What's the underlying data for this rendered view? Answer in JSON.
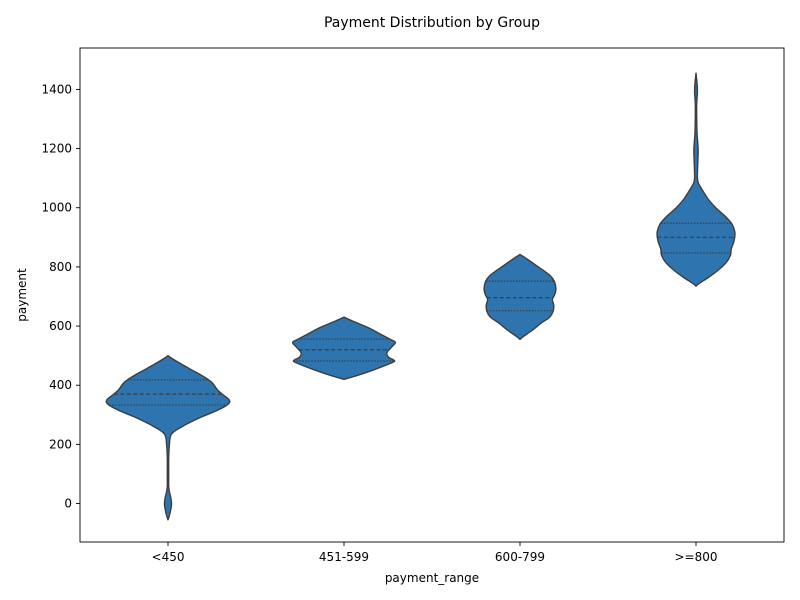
{
  "chart_data": {
    "type": "violin",
    "title": "Payment Distribution by Group",
    "xlabel": "payment_range",
    "ylabel": "payment",
    "categories": [
      "<450",
      "451-599",
      "600-799",
      ">=800"
    ],
    "ylim": [
      -130,
      1540
    ],
    "yticks": [
      0,
      200,
      400,
      600,
      800,
      1000,
      1200,
      1400
    ],
    "grid": false,
    "legend": "none",
    "color": "#2e75b0",
    "edge_color": "#3d3d3d",
    "violins": [
      {
        "category": "<450",
        "quartiles": [
          333,
          370,
          418
        ],
        "profile": [
          [
            -55,
            0.0
          ],
          [
            -40,
            0.02
          ],
          [
            -20,
            0.04
          ],
          [
            0,
            0.05
          ],
          [
            20,
            0.04
          ],
          [
            40,
            0.02
          ],
          [
            60,
            0.01
          ],
          [
            100,
            0.01
          ],
          [
            150,
            0.01
          ],
          [
            200,
            0.02
          ],
          [
            235,
            0.05
          ],
          [
            260,
            0.2
          ],
          [
            290,
            0.45
          ],
          [
            315,
            0.7
          ],
          [
            335,
            0.85
          ],
          [
            350,
            0.87
          ],
          [
            370,
            0.77
          ],
          [
            385,
            0.7
          ],
          [
            410,
            0.62
          ],
          [
            430,
            0.5
          ],
          [
            450,
            0.35
          ],
          [
            470,
            0.2
          ],
          [
            490,
            0.06
          ],
          [
            500,
            0.0
          ]
        ]
      },
      {
        "category": "451-599",
        "quartiles": [
          482,
          520,
          556
        ],
        "profile": [
          [
            420,
            0.0
          ],
          [
            430,
            0.15
          ],
          [
            450,
            0.4
          ],
          [
            470,
            0.62
          ],
          [
            482,
            0.72
          ],
          [
            495,
            0.63
          ],
          [
            510,
            0.61
          ],
          [
            530,
            0.68
          ],
          [
            545,
            0.73
          ],
          [
            556,
            0.65
          ],
          [
            575,
            0.5
          ],
          [
            595,
            0.34
          ],
          [
            615,
            0.14
          ],
          [
            630,
            0.0
          ]
        ]
      },
      {
        "category": "600-799",
        "quartiles": [
          652,
          696,
          752
        ],
        "profile": [
          [
            555,
            0.0
          ],
          [
            565,
            0.05
          ],
          [
            585,
            0.17
          ],
          [
            610,
            0.3
          ],
          [
            630,
            0.42
          ],
          [
            650,
            0.47
          ],
          [
            670,
            0.48
          ],
          [
            690,
            0.46
          ],
          [
            705,
            0.49
          ],
          [
            725,
            0.51
          ],
          [
            750,
            0.49
          ],
          [
            770,
            0.43
          ],
          [
            790,
            0.32
          ],
          [
            810,
            0.2
          ],
          [
            830,
            0.08
          ],
          [
            842,
            0.0
          ]
        ]
      },
      {
        "category": ">=800",
        "quartiles": [
          847,
          900,
          948
        ],
        "profile": [
          [
            735,
            0.0
          ],
          [
            745,
            0.05
          ],
          [
            765,
            0.18
          ],
          [
            790,
            0.32
          ],
          [
            815,
            0.43
          ],
          [
            840,
            0.49
          ],
          [
            860,
            0.5
          ],
          [
            880,
            0.53
          ],
          [
            900,
            0.55
          ],
          [
            920,
            0.55
          ],
          [
            945,
            0.51
          ],
          [
            970,
            0.42
          ],
          [
            1000,
            0.28
          ],
          [
            1030,
            0.17
          ],
          [
            1060,
            0.09
          ],
          [
            1080,
            0.04
          ],
          [
            1100,
            0.02
          ],
          [
            1150,
            0.025
          ],
          [
            1200,
            0.03
          ],
          [
            1250,
            0.015
          ],
          [
            1300,
            0.01
          ],
          [
            1350,
            0.01
          ],
          [
            1390,
            0.02
          ],
          [
            1420,
            0.015
          ],
          [
            1455,
            0.0
          ]
        ]
      }
    ]
  }
}
